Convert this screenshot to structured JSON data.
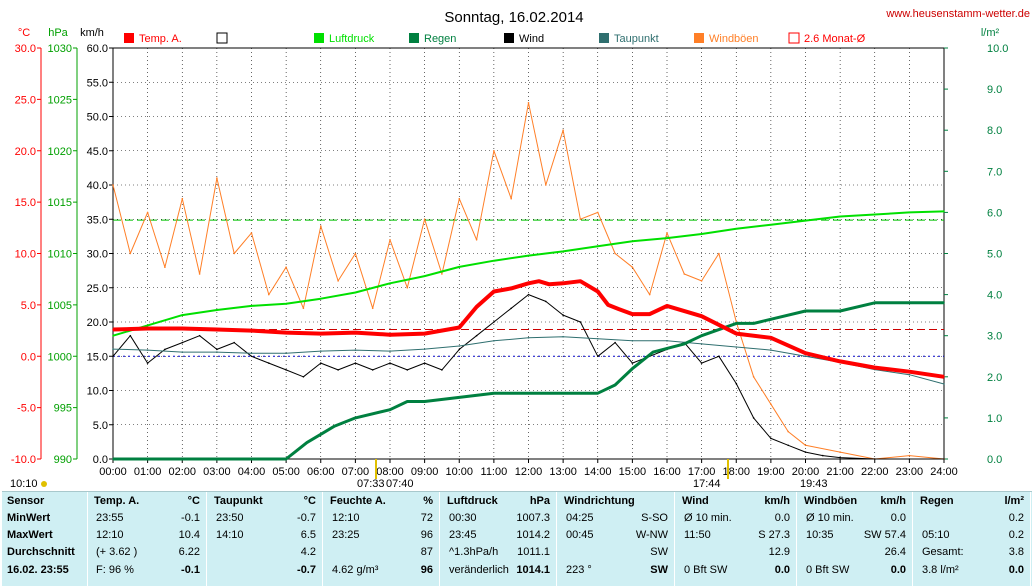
{
  "title": "Sonntag, 16.02.2014",
  "site": "www.heusenstamm-wetter.de",
  "axis_units": {
    "temp": "°C",
    "pressure": "hPa",
    "wind": "km/h",
    "rain": "l/m²"
  },
  "temp_ticks": [
    "30.0",
    "25.0",
    "20.0",
    "15.0",
    "10.0",
    "5.0",
    "0.0",
    "-5.0",
    "-10.0"
  ],
  "pressure_ticks": [
    "1030",
    "1025",
    "1020",
    "1015",
    "1010",
    "1005",
    "1000",
    "995",
    "990"
  ],
  "wind_ticks": [
    "60.0",
    "55.0",
    "50.0",
    "45.0",
    "40.0",
    "35.0",
    "30.0",
    "25.0",
    "20.0",
    "15.0",
    "10.0",
    "5.0",
    "0.0"
  ],
  "rain_ticks": [
    "10.0",
    "9.0",
    "8.0",
    "7.0",
    "6.0",
    "5.0",
    "4.0",
    "3.0",
    "2.0",
    "1.0",
    "0.0"
  ],
  "time_ticks": [
    "00:00",
    "01:00",
    "02:00",
    "03:00",
    "04:00",
    "05:00",
    "06:00",
    "07:00",
    "08:00",
    "09:00",
    "10:00",
    "11:00",
    "12:00",
    "13:00",
    "14:00",
    "15:00",
    "16:00",
    "17:00",
    "18:00",
    "19:00",
    "20:00",
    "21:00",
    "22:00",
    "23:00",
    "24:00"
  ],
  "sun_markers": {
    "sunrise": "07:33",
    "sunset_prev": "07:40",
    "t1": "17:44",
    "sunset": "19:43",
    "left": "10:10"
  },
  "colors": {
    "temp": "#ff0000",
    "pressure": "#00e000",
    "rain": "#008040",
    "wind": "#000000",
    "dew": "#2f6f6f",
    "gust": "#ff7f27",
    "avg": "#ff0000",
    "grid": "#000000",
    "bg": "#ffffff",
    "axis_temp": "#ff0000",
    "axis_pressure": "#00a000",
    "axis_rain": "#008040"
  },
  "legend": [
    {
      "label": "Temp. A.",
      "color": "#ff0000",
      "style": "box"
    },
    {
      "label": "",
      "color": "#000000",
      "style": "empty"
    },
    {
      "label": "Luftdruck",
      "color": "#00e000",
      "style": "box"
    },
    {
      "label": "Regen",
      "color": "#008040",
      "style": "box"
    },
    {
      "label": "Wind",
      "color": "#000000",
      "style": "box"
    },
    {
      "label": "Taupunkt",
      "color": "#2f6f6f",
      "style": "box"
    },
    {
      "label": "Windböen",
      "color": "#ff7f27",
      "style": "box"
    },
    {
      "label": "2.6 Monat-Ø",
      "color": "#ff0000",
      "style": "empty"
    }
  ],
  "chart_data": {
    "type": "line",
    "x_range": [
      0,
      24
    ],
    "series": [
      {
        "name": "Temp. A.",
        "axis": "°C",
        "points": [
          [
            0,
            2.6
          ],
          [
            1,
            2.7
          ],
          [
            2,
            2.7
          ],
          [
            3,
            2.6
          ],
          [
            4,
            2.5
          ],
          [
            5,
            2.3
          ],
          [
            6,
            2.2
          ],
          [
            7,
            2.3
          ],
          [
            8,
            2.1
          ],
          [
            9,
            2.2
          ],
          [
            10,
            2.8
          ],
          [
            10.5,
            4.8
          ],
          [
            11,
            6.3
          ],
          [
            11.5,
            6.6
          ],
          [
            12,
            7.1
          ],
          [
            12.3,
            7.3
          ],
          [
            12.6,
            7.0
          ],
          [
            13,
            7.1
          ],
          [
            13.5,
            7.3
          ],
          [
            14,
            6.3
          ],
          [
            14.3,
            5.0
          ],
          [
            14.6,
            4.6
          ],
          [
            15,
            4.1
          ],
          [
            15.5,
            4.1
          ],
          [
            16,
            4.9
          ],
          [
            17,
            3.9
          ],
          [
            18,
            2.2
          ],
          [
            19,
            1.8
          ],
          [
            20,
            0.3
          ],
          [
            21,
            -0.5
          ],
          [
            22,
            -1.1
          ],
          [
            23,
            -1.5
          ],
          [
            24,
            -2.0
          ]
        ]
      },
      {
        "name": "Luftdruck",
        "axis": "hPa",
        "points": [
          [
            0,
            1002.0
          ],
          [
            1,
            1003.0
          ],
          [
            2,
            1004.0
          ],
          [
            3,
            1004.5
          ],
          [
            4,
            1004.9
          ],
          [
            5,
            1005.1
          ],
          [
            6,
            1005.6
          ],
          [
            7,
            1006.2
          ],
          [
            8,
            1007.1
          ],
          [
            9,
            1007.8
          ],
          [
            10,
            1008.7
          ],
          [
            11,
            1009.3
          ],
          [
            12,
            1009.8
          ],
          [
            13,
            1010.2
          ],
          [
            14,
            1010.7
          ],
          [
            15,
            1011.2
          ],
          [
            16,
            1011.5
          ],
          [
            17,
            1011.9
          ],
          [
            18,
            1012.4
          ],
          [
            19,
            1012.8
          ],
          [
            20,
            1013.2
          ],
          [
            21,
            1013.6
          ],
          [
            22,
            1013.8
          ],
          [
            23,
            1014.0
          ],
          [
            24,
            1014.1
          ]
        ]
      },
      {
        "name": "Regen",
        "axis": "l/m²",
        "points": [
          [
            0,
            0
          ],
          [
            5,
            0
          ],
          [
            5.3,
            0.2
          ],
          [
            5.6,
            0.4
          ],
          [
            6,
            0.6
          ],
          [
            6.4,
            0.8
          ],
          [
            7,
            1.0
          ],
          [
            8,
            1.2
          ],
          [
            8.5,
            1.4
          ],
          [
            9,
            1.4
          ],
          [
            11,
            1.6
          ],
          [
            14,
            1.6
          ],
          [
            14.5,
            1.8
          ],
          [
            15,
            2.2
          ],
          [
            15.6,
            2.6
          ],
          [
            16.5,
            2.8
          ],
          [
            17,
            3.0
          ],
          [
            18,
            3.3
          ],
          [
            18.5,
            3.3
          ],
          [
            20,
            3.6
          ],
          [
            21,
            3.6
          ],
          [
            22,
            3.8
          ],
          [
            24,
            3.8
          ]
        ]
      },
      {
        "name": "Wind",
        "axis": "km/h",
        "points": [
          [
            0,
            15
          ],
          [
            0.5,
            18
          ],
          [
            1,
            14
          ],
          [
            1.5,
            16
          ],
          [
            2,
            17
          ],
          [
            2.5,
            18
          ],
          [
            3,
            16
          ],
          [
            3.5,
            17
          ],
          [
            4,
            15
          ],
          [
            4.5,
            14
          ],
          [
            5,
            13
          ],
          [
            5.5,
            12
          ],
          [
            6,
            14
          ],
          [
            6.5,
            13
          ],
          [
            7,
            14
          ],
          [
            7.5,
            13
          ],
          [
            8,
            14
          ],
          [
            8.5,
            13
          ],
          [
            9,
            14
          ],
          [
            9.5,
            13
          ],
          [
            10,
            16
          ],
          [
            10.5,
            18
          ],
          [
            11,
            20
          ],
          [
            11.5,
            22
          ],
          [
            12,
            24
          ],
          [
            12.5,
            23
          ],
          [
            13,
            21
          ],
          [
            13.5,
            20
          ],
          [
            14,
            15
          ],
          [
            14.5,
            17
          ],
          [
            15,
            14
          ],
          [
            15.5,
            15
          ],
          [
            16,
            16
          ],
          [
            16.5,
            17
          ],
          [
            17,
            14
          ],
          [
            17.5,
            15
          ],
          [
            18,
            11
          ],
          [
            18.5,
            6
          ],
          [
            19,
            3
          ],
          [
            19.5,
            2
          ],
          [
            20,
            1
          ],
          [
            20.5,
            0.5
          ],
          [
            21,
            0.2
          ],
          [
            22,
            0
          ],
          [
            23,
            0
          ],
          [
            24,
            0
          ]
        ]
      },
      {
        "name": "Taupunkt",
        "axis": "°C",
        "points": [
          [
            0,
            0.7
          ],
          [
            1,
            0.6
          ],
          [
            2,
            0.4
          ],
          [
            3,
            0.4
          ],
          [
            4,
            0.3
          ],
          [
            5,
            0.3
          ],
          [
            6,
            0.5
          ],
          [
            7,
            0.6
          ],
          [
            8,
            0.5
          ],
          [
            9,
            0.7
          ],
          [
            10,
            1.0
          ],
          [
            11,
            1.5
          ],
          [
            12,
            1.8
          ],
          [
            13,
            1.9
          ],
          [
            14,
            1.7
          ],
          [
            15,
            1.5
          ],
          [
            16,
            1.5
          ],
          [
            17,
            1.2
          ],
          [
            18,
            0.9
          ],
          [
            19,
            0.6
          ],
          [
            20,
            0.0
          ],
          [
            21,
            -0.6
          ],
          [
            22,
            -1.3
          ],
          [
            23,
            -1.8
          ],
          [
            24,
            -2.7
          ]
        ]
      },
      {
        "name": "Windböen",
        "axis": "km/h",
        "points": [
          [
            0,
            40
          ],
          [
            0.5,
            30
          ],
          [
            1,
            36
          ],
          [
            1.5,
            28
          ],
          [
            2,
            38
          ],
          [
            2.5,
            27
          ],
          [
            3,
            41
          ],
          [
            3.5,
            30
          ],
          [
            4,
            33
          ],
          [
            4.5,
            24
          ],
          [
            5,
            28
          ],
          [
            5.5,
            22
          ],
          [
            6,
            34
          ],
          [
            6.5,
            26
          ],
          [
            7,
            30
          ],
          [
            7.5,
            22
          ],
          [
            8,
            32
          ],
          [
            8.5,
            25
          ],
          [
            9,
            35
          ],
          [
            9.5,
            27
          ],
          [
            10,
            38
          ],
          [
            10.5,
            32
          ],
          [
            11,
            45
          ],
          [
            11.5,
            38
          ],
          [
            12,
            52
          ],
          [
            12.5,
            40
          ],
          [
            13,
            48
          ],
          [
            13.5,
            35
          ],
          [
            14,
            36
          ],
          [
            14.5,
            30
          ],
          [
            15,
            28
          ],
          [
            15.5,
            24
          ],
          [
            16,
            33
          ],
          [
            16.5,
            27
          ],
          [
            17,
            26
          ],
          [
            17.5,
            30
          ],
          [
            18,
            20
          ],
          [
            18.5,
            12
          ],
          [
            19,
            8
          ],
          [
            19.5,
            4
          ],
          [
            20,
            2
          ],
          [
            21,
            1
          ],
          [
            22,
            0
          ],
          [
            23,
            0.5
          ],
          [
            24,
            0
          ]
        ]
      }
    ],
    "reference_lines": [
      {
        "name": "2.6 Monat-Ø",
        "axis": "°C",
        "value": 2.6
      },
      {
        "name": "pressure_ref",
        "axis": "hPa",
        "value": 1013.25
      },
      {
        "name": "zero_temp",
        "axis": "°C",
        "value": 0
      }
    ],
    "ranges": {
      "temp": [
        -10,
        30
      ],
      "pressure": [
        990,
        1030
      ],
      "wind": [
        0,
        60
      ],
      "rain": [
        0,
        10
      ]
    },
    "grid": true,
    "legend_position": "top"
  },
  "summary": {
    "date_label": "16.02. 23:55",
    "row_labels": [
      "Sensor",
      "MinWert",
      "MaxWert",
      "Durchschnitt"
    ],
    "columns": [
      {
        "head": "Temp. A.",
        "unit": "°C",
        "rows": [
          [
            "23:55",
            "-0.1"
          ],
          [
            "12:10",
            "10.4"
          ],
          [
            "(+ 3.62 )",
            "6.22"
          ],
          [
            "F: 96 %",
            "-0.1"
          ]
        ]
      },
      {
        "head": "Taupunkt",
        "unit": "°C",
        "rows": [
          [
            "23:50",
            "-0.7"
          ],
          [
            "14:10",
            "6.5"
          ],
          [
            "",
            "4.2"
          ],
          [
            "",
            "-0.7"
          ]
        ]
      },
      {
        "head": "Feuchte A.",
        "unit": "%",
        "rows": [
          [
            "12:10",
            "72"
          ],
          [
            "23:25",
            "96"
          ],
          [
            "",
            "87"
          ],
          [
            "4.62 g/m³",
            "96"
          ]
        ]
      },
      {
        "head": "Luftdruck",
        "unit": "hPa",
        "rows": [
          [
            "00:30",
            "1007.3"
          ],
          [
            "23:45",
            "1014.2"
          ],
          [
            "^1.3hPa/h",
            "1011.1"
          ],
          [
            "veränderlich",
            "1014.1"
          ]
        ]
      },
      {
        "head": "Windrichtung",
        "unit": "",
        "rows": [
          [
            "04:25",
            "S-SO"
          ],
          [
            "00:45",
            "W-NW"
          ],
          [
            "",
            "SW"
          ],
          [
            "223 °",
            "SW"
          ]
        ]
      },
      {
        "head": "Wind",
        "unit": "km/h",
        "rows": [
          [
            "Ø 10 min.",
            "0.0"
          ],
          [
            "11:50",
            "S 27.3"
          ],
          [
            "",
            "12.9"
          ],
          [
            "0 Bft SW",
            "0.0"
          ]
        ]
      },
      {
        "head": "Windböen",
        "unit": "km/h",
        "rows": [
          [
            "Ø 10 min.",
            "0.0"
          ],
          [
            "10:35",
            "SW 57.4"
          ],
          [
            "",
            "26.4"
          ],
          [
            "0 Bft SW",
            "0.0"
          ]
        ]
      },
      {
        "head": "Regen",
        "unit": "l/m²",
        "rows": [
          [
            "",
            "0.2"
          ],
          [
            "05:10",
            "0.2"
          ],
          [
            "Gesamt:",
            "3.8"
          ],
          [
            "3.8 l/m²",
            "0.0"
          ]
        ]
      }
    ]
  }
}
